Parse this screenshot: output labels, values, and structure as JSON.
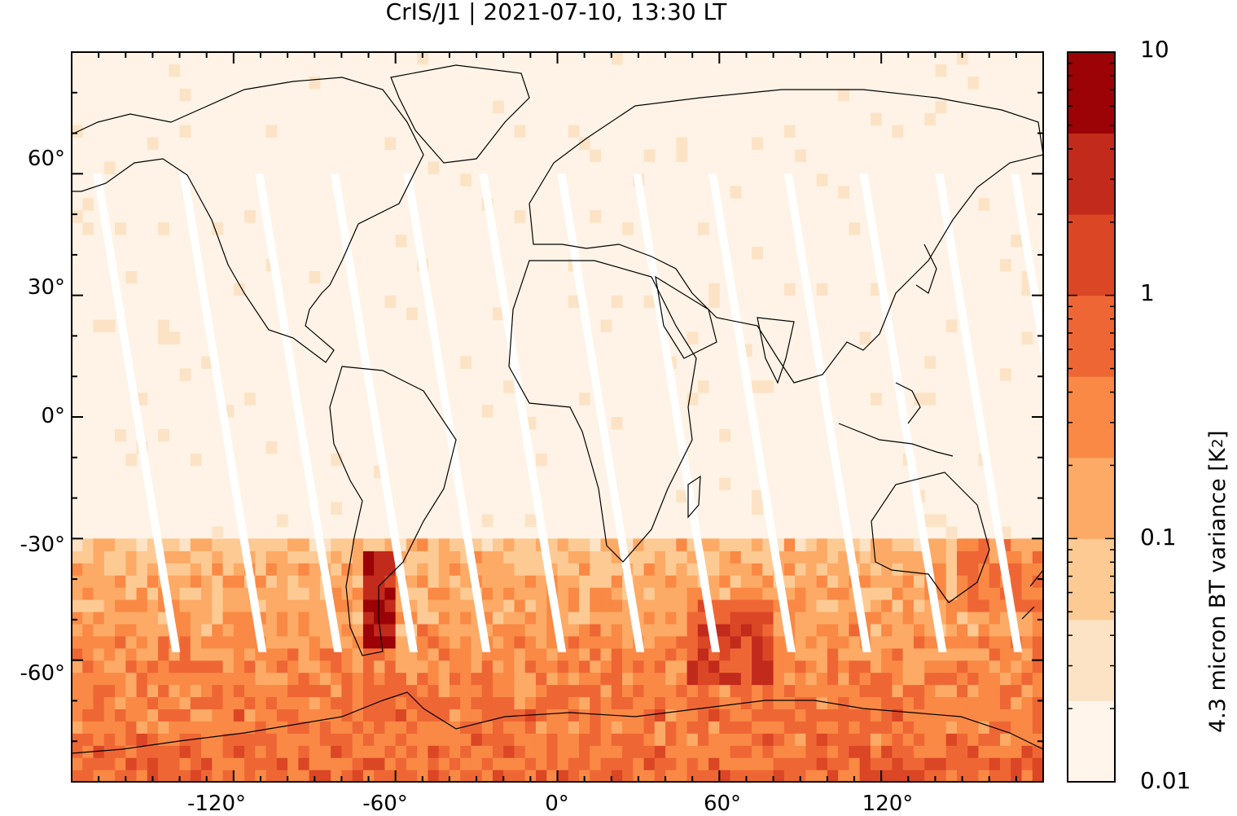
{
  "title": "CrIS/J1 | 2021-07-10, 13:30 LT",
  "map": {
    "projection": "equirectangular",
    "lon_range": [
      -180,
      180
    ],
    "lat_range": [
      -90,
      90
    ],
    "lon_ticks": [
      "-120°",
      "-60°",
      "0°",
      "60°",
      "120°"
    ],
    "lat_ticks": [
      "60°",
      "30°",
      "0°",
      "-30°",
      "-60°"
    ],
    "field": "4.3 micron brightness-temperature variance",
    "high_regions": [
      "southern Andes / Patagonia",
      "Southern Indian Ocean near 60°E",
      "Southern Ocean storm track"
    ]
  },
  "colorbar": {
    "label_main": "4.3 micron BT variance [K",
    "label_sup": "2",
    "label_end": "]",
    "scale": "log",
    "ticks": [
      "10",
      "1",
      "0.1",
      "0.01"
    ],
    "levels": [
      0.01,
      0.0215,
      0.0464,
      0.1,
      0.215,
      0.464,
      1,
      2.15,
      4.64,
      10
    ],
    "colors": [
      "#fff5eb",
      "#fde3c6",
      "#fdca94",
      "#fdaa66",
      "#f98944",
      "#ef6635",
      "#db4625",
      "#c22a1c",
      "#9b0306"
    ]
  }
}
